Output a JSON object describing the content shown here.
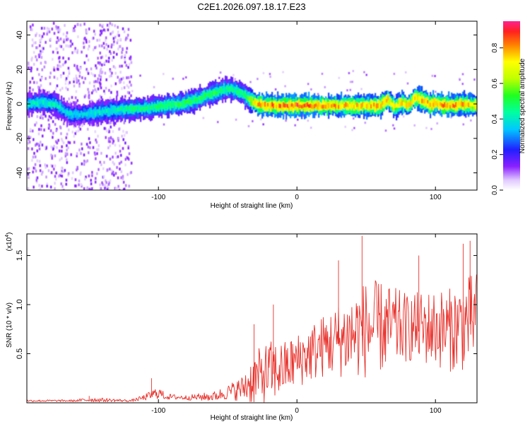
{
  "title": "C2E1.2026.097.18.17.E23",
  "chart_data": [
    {
      "type": "heatmap",
      "xlabel": "Height of straight line (km)",
      "ylabel": "Frequency (Hz)",
      "xlim": [
        -195,
        130
      ],
      "ylim": [
        -50,
        48
      ],
      "x_ticks": [
        -100,
        0,
        100
      ],
      "x_tick_labels": [
        "-100",
        "0",
        "100"
      ],
      "y_ticks": [
        -40,
        -20,
        0,
        20,
        40
      ],
      "y_tick_labels": [
        "-40",
        "-20",
        "0",
        "20",
        "40"
      ],
      "colorbar": {
        "label": "Normalized spectral amplitude",
        "range": [
          0,
          0.95
        ],
        "ticks": [
          0.0,
          0.2,
          0.4,
          0.6,
          0.8
        ],
        "tick_labels": [
          "0.0",
          "0.2",
          "0.4",
          "0.6",
          "0.8"
        ]
      },
      "ridge": {
        "x": [
          -195,
          -185,
          -175,
          -165,
          -155,
          -145,
          -135,
          -125,
          -115,
          -105,
          -95,
          -85,
          -75,
          -65,
          -60,
          -55,
          -50,
          -45,
          -40,
          -35,
          -30,
          -20,
          -10,
          0,
          10,
          20,
          30,
          40,
          50,
          60,
          65,
          70,
          75,
          80,
          85,
          90,
          95,
          100,
          110,
          120,
          130
        ],
        "freq_hz": [
          0,
          1,
          0,
          -6,
          -6,
          -5,
          -4,
          -3,
          -3,
          -2,
          -1,
          0,
          2,
          5,
          6,
          8,
          9,
          8,
          6,
          3,
          0,
          -1,
          -1,
          -1,
          -1,
          -1,
          -1,
          -1,
          -1,
          -1,
          3,
          -2,
          1,
          -1,
          4,
          2,
          0,
          0,
          -1,
          0,
          -1
        ],
        "amplitude": [
          0.45,
          0.45,
          0.45,
          0.4,
          0.4,
          0.45,
          0.45,
          0.5,
          0.5,
          0.5,
          0.55,
          0.55,
          0.55,
          0.55,
          0.55,
          0.5,
          0.5,
          0.5,
          0.5,
          0.6,
          0.85,
          0.9,
          0.9,
          0.95,
          0.9,
          0.9,
          0.85,
          0.85,
          0.85,
          0.85,
          0.8,
          0.75,
          0.8,
          0.8,
          0.85,
          0.85,
          0.85,
          0.9,
          0.9,
          0.85,
          0.8
        ]
      }
    },
    {
      "type": "line",
      "series": [
        {
          "name": "SNR",
          "color": "#e8302a"
        }
      ],
      "xlabel": "Height of straight line (km)",
      "ylabel": "SNR (10 * v/v)",
      "y_multiplier": "(x10",
      "y_multiplier_exp": "4",
      "y_multiplier_close": ")",
      "xlim": [
        -195,
        130
      ],
      "ylim": [
        0,
        1.72
      ],
      "x_ticks": [
        -100,
        0,
        100
      ],
      "x_tick_labels": [
        "-100",
        "0",
        "100"
      ],
      "y_ticks": [
        0.5,
        1.0,
        1.5
      ],
      "y_tick_labels": [
        "0.5",
        "1.0",
        "1.5"
      ],
      "envelope": {
        "x": [
          -195,
          -160,
          -150,
          -120,
          -110,
          -100,
          -95,
          -80,
          -60,
          -50,
          -40,
          -35,
          -30,
          -25,
          -20,
          -10,
          0,
          10,
          20,
          30,
          40,
          50,
          60,
          80,
          100,
          110,
          120,
          130
        ],
        "base": [
          0.02,
          0.02,
          0.03,
          0.02,
          0.05,
          0.1,
          0.06,
          0.05,
          0.06,
          0.1,
          0.13,
          0.18,
          0.22,
          0.25,
          0.28,
          0.32,
          0.4,
          0.48,
          0.55,
          0.6,
          0.65,
          0.7,
          0.72,
          0.73,
          0.72,
          0.7,
          0.75,
          0.85
        ],
        "amp": [
          0.02,
          0.02,
          0.05,
          0.02,
          0.06,
          0.13,
          0.06,
          0.05,
          0.1,
          0.15,
          0.25,
          0.42,
          0.55,
          0.6,
          0.65,
          0.55,
          0.55,
          0.6,
          0.65,
          0.75,
          0.9,
          1.0,
          0.95,
          0.7,
          0.8,
          0.85,
          0.95,
          0.9
        ]
      },
      "peaks": [
        {
          "x": 47,
          "y": 1.7
        },
        {
          "x": 125,
          "y": 1.65
        },
        {
          "x": 120,
          "y": 1.62
        },
        {
          "x": 30,
          "y": 1.45
        },
        {
          "x": 88,
          "y": 1.5
        },
        {
          "x": -17,
          "y": 1.0
        },
        {
          "x": -31,
          "y": 0.8
        },
        {
          "x": -105,
          "y": 0.25
        },
        {
          "x": -150,
          "y": 0.07
        }
      ]
    }
  ]
}
